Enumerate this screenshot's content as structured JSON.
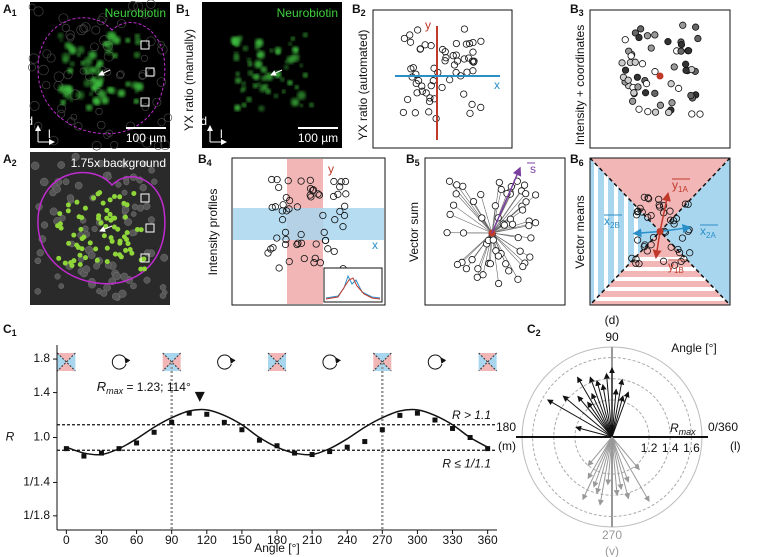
{
  "panels": {
    "A1": {
      "label": "A",
      "sub": "1",
      "stain": "Neurobiotin",
      "scale_bar": "100 µm",
      "axis_d": "d",
      "axis_l": "l"
    },
    "A2": {
      "label": "A",
      "sub": "2",
      "caption": "1.75x background"
    },
    "B1": {
      "label": "B",
      "sub": "1",
      "title": "YX ratio (manually)",
      "stain": "Neurobiotin",
      "scale_bar": "100 µm",
      "axis_d": "d",
      "axis_l": "l"
    },
    "B2": {
      "label": "B",
      "sub": "2",
      "title": "YX ratio (automated)",
      "y": "y",
      "x": "x"
    },
    "B3": {
      "label": "B",
      "sub": "3",
      "title": "Intensity + coordinates"
    },
    "B4": {
      "label": "B",
      "sub": "4",
      "title": "Intensity profiles",
      "y": "y",
      "x": "x"
    },
    "B5": {
      "label": "B",
      "sub": "5",
      "title": "Vector sum",
      "s": "s"
    },
    "B6": {
      "label": "B",
      "sub": "6",
      "title": "Vector means",
      "y1A": {
        "t": "y",
        "sub": "1A"
      },
      "x2B": {
        "t": "x",
        "sub": "2B"
      },
      "x2A": {
        "t": "x",
        "sub": "2A"
      },
      "y1B": {
        "t": "y",
        "sub": "1B"
      }
    }
  },
  "chart_data": [
    {
      "type": "line",
      "label": "C",
      "sub": "1",
      "x_label": "Angle [°]",
      "y_label": "R",
      "log_y": true,
      "xlim": [
        -8,
        368
      ],
      "xticks": [
        0,
        30,
        60,
        90,
        120,
        150,
        180,
        210,
        240,
        270,
        300,
        330,
        360
      ],
      "ylim": [
        0.5,
        2.0
      ],
      "yticks": [
        {
          "value": 0.556,
          "label": "1/1.8"
        },
        {
          "value": 0.714,
          "label": "1/1.4"
        },
        {
          "value": 1.0,
          "label": "1.0"
        },
        1.4,
        1.8
      ],
      "x": [
        0,
        15,
        30,
        45,
        60,
        75,
        90,
        105,
        120,
        135,
        150,
        165,
        180,
        195,
        210,
        225,
        240,
        255,
        270,
        285,
        300,
        315,
        330,
        345,
        360
      ],
      "series": [
        {
          "color": "#111111",
          "marker": "square",
          "line": false,
          "values": [
            0.92,
            0.87,
            0.89,
            0.92,
            0.96,
            1.04,
            1.12,
            1.2,
            1.19,
            1.12,
            1.06,
            0.98,
            0.94,
            0.89,
            0.88,
            0.9,
            0.93,
            0.97,
            1.06,
            1.18,
            1.2,
            1.14,
            1.07,
            1.0,
            0.92
          ]
        },
        {
          "color": "#111111",
          "marker": "none",
          "line": true,
          "values": [
            0.93,
            0.89,
            0.88,
            0.92,
            0.99,
            1.08,
            1.16,
            1.22,
            1.23,
            1.18,
            1.1,
            1.0,
            0.93,
            0.89,
            0.88,
            0.92,
            0.99,
            1.08,
            1.16,
            1.22,
            1.23,
            1.18,
            1.1,
            1.0,
            0.93
          ]
        }
      ],
      "thresholds": [
        {
          "value": 1.1,
          "label": "R > 1.1"
        },
        {
          "value": 0.909,
          "label": "R ≤ 1/1.1"
        }
      ],
      "vlines": [
        90,
        270
      ],
      "annotation": {
        "symbol": "R",
        "sub": "max",
        "text": " = 1.23; 114°",
        "x": 114,
        "y": 1.23
      }
    },
    {
      "type": "polar",
      "label": "C",
      "sub": "2",
      "title": "Angle [°]",
      "rlim": [
        0.85,
        1.7
      ],
      "rticks": [
        1.2,
        1.4,
        1.6
      ],
      "angle_labels": [
        {
          "value": 90,
          "label": "90",
          "dir": "(d)",
          "color": "#111111"
        },
        {
          "value": 0,
          "label": "0/360",
          "dir": "(l)",
          "color": "#111111"
        },
        {
          "value": 180,
          "label": "180",
          "dir": "(m)",
          "color": "#111111"
        },
        {
          "value": 270,
          "label": "270",
          "dir": "(v)",
          "color": "#999999"
        }
      ],
      "r_label": {
        "symbol": "R",
        "sub": "max"
      },
      "series": [
        {
          "color": "#111111",
          "angles": [
            150,
            140,
            130,
            125,
            120,
            115,
            110,
            105,
            100,
            95,
            90,
            85,
            80,
            75,
            70,
            165
          ],
          "values": [
            1.55,
            1.45,
            1.35,
            1.25,
            1.5,
            1.3,
            1.45,
            1.4,
            1.35,
            1.45,
            1.5,
            1.3,
            1.4,
            1.25,
            1.3,
            1.2
          ]
        },
        {
          "color": "#999999",
          "angles": [
            230,
            240,
            245,
            250,
            255,
            260,
            265,
            275,
            280,
            285,
            290,
            300,
            310
          ],
          "values": [
            1.2,
            1.3,
            1.5,
            1.35,
            1.4,
            1.5,
            1.3,
            1.4,
            1.35,
            1.45,
            1.3,
            1.55,
            1.25
          ]
        }
      ]
    }
  ]
}
